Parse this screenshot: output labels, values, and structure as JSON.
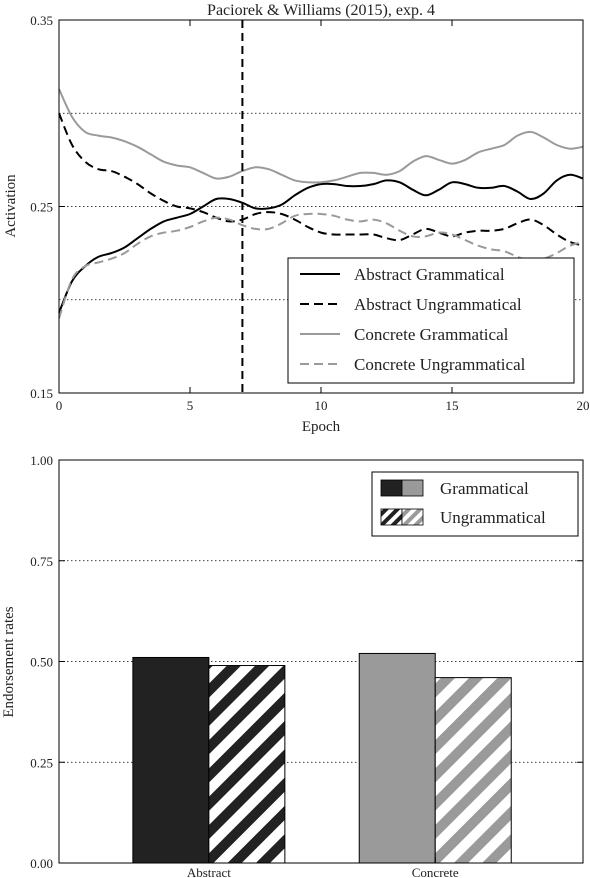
{
  "chart_data": [
    {
      "type": "line",
      "title": "Paciorek & Williams (2015), exp. 4",
      "xlabel": "Epoch",
      "ylabel": "Activation",
      "xlim": [
        0,
        20
      ],
      "ylim": [
        0.15,
        0.35
      ],
      "xticks": [
        0,
        5,
        10,
        15,
        20
      ],
      "xtick_labels": [
        "0",
        "5",
        "10",
        "15",
        "20"
      ],
      "yticks": [
        0.15,
        0.25,
        0.35
      ],
      "ytick_labels": [
        "0.15",
        "0.25",
        "0.35"
      ],
      "grid": "horizontal dotted",
      "vline_x": 7,
      "legend_position": "bottom-right",
      "series": [
        {
          "name": "Abstract Grammatical",
          "color": "#000000",
          "dash": "solid",
          "x": [
            0,
            0.5,
            1,
            1.5,
            2,
            2.5,
            3,
            3.5,
            4,
            4.5,
            5,
            5.5,
            6,
            6.5,
            7,
            7.5,
            8,
            8.5,
            9,
            9.5,
            10,
            10.5,
            11,
            11.5,
            12,
            12.5,
            13,
            13.5,
            14,
            14.5,
            15,
            15.5,
            16,
            16.5,
            17,
            17.5,
            18,
            18.5,
            19,
            19.5,
            20
          ],
          "values": [
            0.193,
            0.21,
            0.218,
            0.223,
            0.225,
            0.228,
            0.233,
            0.238,
            0.242,
            0.244,
            0.246,
            0.25,
            0.254,
            0.254,
            0.252,
            0.249,
            0.249,
            0.251,
            0.256,
            0.26,
            0.262,
            0.262,
            0.261,
            0.261,
            0.262,
            0.264,
            0.263,
            0.259,
            0.256,
            0.259,
            0.263,
            0.262,
            0.26,
            0.26,
            0.261,
            0.258,
            0.254,
            0.257,
            0.264,
            0.267,
            0.265
          ]
        },
        {
          "name": "Abstract Ungrammatical",
          "color": "#000000",
          "dash": "dashed",
          "x": [
            0,
            0.5,
            1,
            1.5,
            2,
            2.5,
            3,
            3.5,
            4,
            4.5,
            5,
            5.5,
            6,
            6.5,
            7,
            7.5,
            8,
            8.5,
            9,
            9.5,
            10,
            10.5,
            11,
            11.5,
            12,
            12.5,
            13,
            13.5,
            14,
            14.5,
            15,
            15.5,
            16,
            16.5,
            17,
            17.5,
            18,
            18.5,
            19,
            19.5,
            20
          ],
          "values": [
            0.3,
            0.283,
            0.274,
            0.27,
            0.269,
            0.266,
            0.262,
            0.257,
            0.253,
            0.25,
            0.249,
            0.247,
            0.244,
            0.242,
            0.243,
            0.246,
            0.247,
            0.246,
            0.243,
            0.239,
            0.236,
            0.235,
            0.235,
            0.235,
            0.235,
            0.233,
            0.232,
            0.235,
            0.238,
            0.236,
            0.234,
            0.236,
            0.237,
            0.237,
            0.238,
            0.241,
            0.243,
            0.24,
            0.235,
            0.231,
            0.229
          ]
        },
        {
          "name": "Concrete Grammatical",
          "color": "#9a9a9a",
          "dash": "solid",
          "x": [
            0,
            0.5,
            1,
            1.5,
            2,
            2.5,
            3,
            3.5,
            4,
            4.5,
            5,
            5.5,
            6,
            6.5,
            7,
            7.5,
            8,
            8.5,
            9,
            9.5,
            10,
            10.5,
            11,
            11.5,
            12,
            12.5,
            13,
            13.5,
            14,
            14.5,
            15,
            15.5,
            16,
            16.5,
            17,
            17.5,
            18,
            18.5,
            19,
            19.5,
            20
          ],
          "values": [
            0.313,
            0.298,
            0.29,
            0.288,
            0.287,
            0.285,
            0.282,
            0.278,
            0.274,
            0.272,
            0.271,
            0.268,
            0.265,
            0.266,
            0.269,
            0.271,
            0.27,
            0.267,
            0.264,
            0.263,
            0.263,
            0.264,
            0.266,
            0.268,
            0.268,
            0.267,
            0.269,
            0.274,
            0.277,
            0.275,
            0.273,
            0.275,
            0.279,
            0.281,
            0.283,
            0.288,
            0.29,
            0.287,
            0.283,
            0.281,
            0.282
          ]
        },
        {
          "name": "Concrete Ungrammatical",
          "color": "#9a9a9a",
          "dash": "dashed",
          "x": [
            0,
            0.5,
            1,
            1.5,
            2,
            2.5,
            3,
            3.5,
            4,
            4.5,
            5,
            5.5,
            6,
            6.5,
            7,
            7.5,
            8,
            8.5,
            9,
            9.5,
            10,
            10.5,
            11,
            11.5,
            12,
            12.5,
            13,
            13.5,
            14,
            14.5,
            15,
            15.5,
            16,
            16.5,
            17,
            17.5,
            18,
            18.5,
            19,
            19.5,
            20
          ],
          "values": [
            0.19,
            0.211,
            0.218,
            0.22,
            0.222,
            0.225,
            0.23,
            0.234,
            0.236,
            0.237,
            0.239,
            0.242,
            0.244,
            0.243,
            0.24,
            0.238,
            0.238,
            0.241,
            0.245,
            0.246,
            0.246,
            0.245,
            0.243,
            0.242,
            0.243,
            0.241,
            0.237,
            0.234,
            0.234,
            0.236,
            0.235,
            0.232,
            0.229,
            0.227,
            0.226,
            0.223,
            0.221,
            0.222,
            0.225,
            0.229,
            0.231
          ]
        }
      ]
    },
    {
      "type": "bar",
      "xlabel": "",
      "ylabel": "Endorsement rates",
      "ylim": [
        0,
        1
      ],
      "yticks": [
        0,
        0.25,
        0.5,
        0.75,
        1
      ],
      "ytick_labels": [
        "0.00",
        "0.25",
        "0.50",
        "0.75",
        "1.00"
      ],
      "grid": "horizontal dotted",
      "legend_position": "top-right",
      "categories": [
        "Abstract",
        "Concrete"
      ],
      "category_colors": [
        "#222222",
        "#9a9a9a"
      ],
      "series": [
        {
          "name": "Grammatical",
          "pattern": "solid",
          "values": [
            0.51,
            0.52
          ]
        },
        {
          "name": "Ungrammatical",
          "pattern": "diagonal-hatch",
          "values": [
            0.49,
            0.46
          ]
        }
      ]
    }
  ]
}
